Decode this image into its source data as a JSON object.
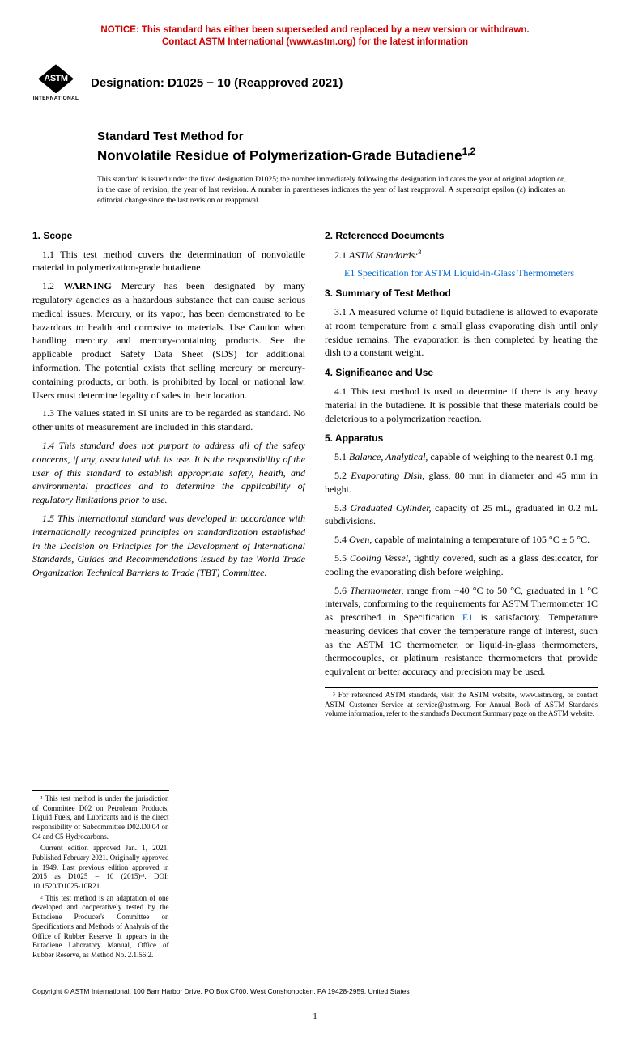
{
  "notice": {
    "line1": "NOTICE: This standard has either been superseded and replaced by a new version or withdrawn.",
    "line2": "Contact ASTM International (www.astm.org) for the latest information"
  },
  "logo": {
    "badge": "ASTM",
    "subtext": "INTERNATIONAL"
  },
  "designation": "Designation: D1025 − 10 (Reapproved 2021)",
  "title": {
    "line1": "Standard Test Method for",
    "line2": "Nonvolatile Residue of Polymerization-Grade Butadiene",
    "sup": "1,2"
  },
  "issuance": "This standard is issued under the fixed designation D1025; the number immediately following the designation indicates the year of original adoption or, in the case of revision, the year of last revision. A number in parentheses indicates the year of last reapproval. A superscript epsilon (ε) indicates an editorial change since the last revision or reapproval.",
  "left": {
    "s1_head": "1. Scope",
    "p1_1": "1.1 This test method covers the determination of nonvolatile material in polymerization-grade butadiene.",
    "p1_2_label": "1.2 ",
    "p1_2_warn": "WARNING",
    "p1_2_body": "—Mercury has been designated by many regulatory agencies as a hazardous substance that can cause serious medical issues. Mercury, or its vapor, has been demonstrated to be hazardous to health and corrosive to materials. Use Caution when handling mercury and mercury-containing products. See the applicable product Safety Data Sheet (SDS) for additional information. The potential exists that selling mercury or mercury-containing products, or both, is prohibited by local or national law. Users must determine legality of sales in their location.",
    "p1_3": "1.3 The values stated in SI units are to be regarded as standard. No other units of measurement are included in this standard.",
    "p1_4": "1.4 This standard does not purport to address all of the safety concerns, if any, associated with its use. It is the responsibility of the user of this standard to establish appropriate safety, health, and environmental practices and to determine the applicability of regulatory limitations prior to use.",
    "p1_5": "1.5 This international standard was developed in accordance with internationally recognized principles on standardization established in the Decision on Principles for the Development of International Standards, Guides and Recommendations issued by the World Trade Organization Technical Barriers to Trade (TBT) Committee.",
    "fn1": "¹ This test method is under the jurisdiction of Committee D02 on Petroleum Products, Liquid Fuels, and Lubricants and is the direct responsibility of Subcommittee D02.D0.04 on C4 and C5 Hydrocarbons.",
    "fn1b": "Current edition approved Jan. 1, 2021. Published February 2021. Originally approved in 1949. Last previous edition approved in 2015 as D1025 – 10 (2015)ᵉ¹. DOI: 10.1520/D1025-10R21.",
    "fn2": "² This test method is an adaptation of one developed and cooperatively tested by the Butadiene Producer's Committee on Specifications and Methods of Analysis of the Office of Rubber Reserve. It appears in the Butadiene Laboratory Manual, Office of Rubber Reserve, as Method No. 2.1.56.2."
  },
  "right": {
    "s2_head": "2. Referenced Documents",
    "p2_1_pre": "2.1 ",
    "p2_1_ital": "ASTM Standards:",
    "p2_1_sup": "3",
    "p2_1_link_ref": "E1",
    "p2_1_link_text": " Specification for ASTM  Liquid-in-Glass Thermometers",
    "s3_head": "3. Summary of Test Method",
    "p3_1": "3.1 A measured volume of liquid butadiene is allowed to evaporate at room temperature from a small glass evaporating dish until only residue remains. The evaporation is then completed by heating the dish to a constant weight.",
    "s4_head": "4. Significance and Use",
    "p4_1": "4.1 This test method is used to determine if there is any heavy material in the butadiene. It is possible that these materials could be deleterious to a polymerization reaction.",
    "s5_head": "5. Apparatus",
    "p5_1_pre": "5.1 ",
    "p5_1_ital": "Balance, Analytical,",
    "p5_1_post": " capable of weighing to the nearest 0.1 mg.",
    "p5_2_pre": "5.2 ",
    "p5_2_ital": "Evaporating Dish,",
    "p5_2_post": " glass, 80 mm in diameter and 45 mm in height.",
    "p5_3_pre": "5.3 ",
    "p5_3_ital": "Graduated Cylinder,",
    "p5_3_post": " capacity of 25 mL, graduated in 0.2 mL subdivisions.",
    "p5_4_pre": "5.4 ",
    "p5_4_ital": "Oven,",
    "p5_4_post": " capable of maintaining a temperature of 105 °C ± 5 °C.",
    "p5_5_pre": "5.5 ",
    "p5_5_ital": "Cooling Vessel,",
    "p5_5_post": " tightly covered, such as a glass desiccator, for cooling the evaporating dish before weighing.",
    "p5_6_pre": "5.6 ",
    "p5_6_ital": "Thermometer,",
    "p5_6_post_a": " range from −40 °C to 50 °C, graduated in 1 °C intervals, conforming to the requirements for ASTM Thermometer 1C as prescribed in Specification ",
    "p5_6_link": "E1",
    "p5_6_post_b": " is satisfactory. Temperature measuring devices that cover the temperature range of interest, such as the ASTM 1C thermometer, or liquid-in-glass thermometers, thermocouples, or platinum resistance thermometers that provide equivalent or better accuracy and precision may be used.",
    "fn3": "³ For referenced ASTM standards, visit the ASTM website, www.astm.org, or contact ASTM Customer Service at service@astm.org. For Annual Book of ASTM Standards volume information, refer to the standard's Document Summary page on the ASTM website."
  },
  "copyright": "Copyright © ASTM International, 100 Barr Harbor Drive, PO Box C700, West Conshohocken, PA 19428-2959. United States",
  "page_num": "1"
}
